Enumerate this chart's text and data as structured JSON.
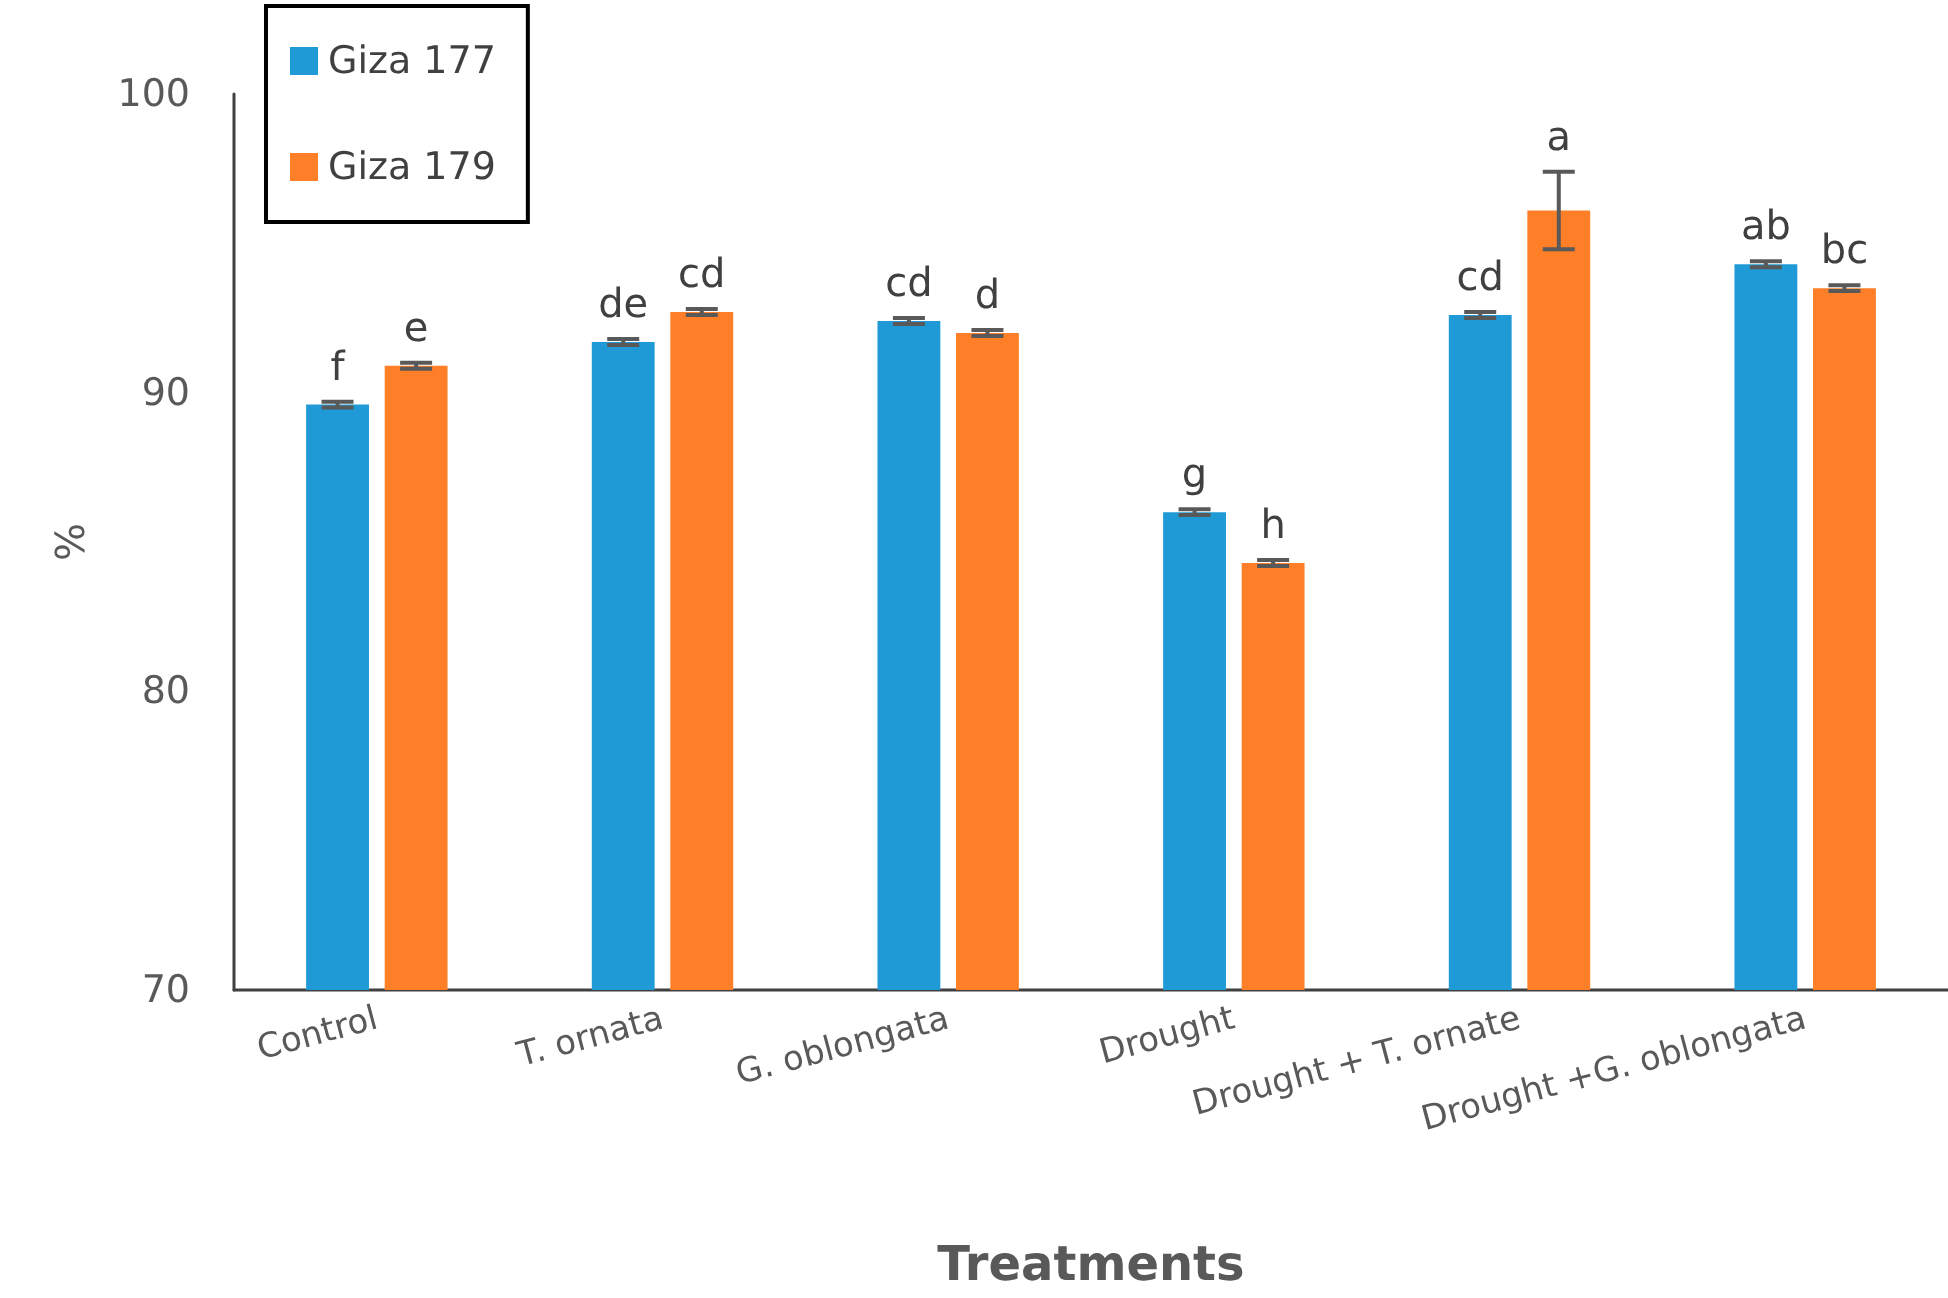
{
  "chart_data": {
    "type": "bar",
    "xlabel": "Treatments",
    "ylabel": "%",
    "categories": [
      "Control",
      "T. ornata",
      "G. oblongata",
      "Drought",
      "Drought + T. ornate",
      "Drought +G. oblongata"
    ],
    "series": [
      {
        "name": "Giza 177",
        "color": "#1f9ad6",
        "values": [
          89.6,
          91.7,
          92.4,
          86.0,
          92.6,
          94.3
        ],
        "errors": [
          0.1,
          0.1,
          0.1,
          0.1,
          0.1,
          0.1
        ]
      },
      {
        "name": "Giza 179",
        "color": "#fe7f27",
        "values": [
          90.9,
          92.7,
          92.0,
          84.3,
          96.1,
          93.5
        ],
        "errors": [
          0.1,
          0.1,
          0.1,
          0.1,
          1.3,
          0.1
        ]
      }
    ],
    "ylim": [
      70,
      100
    ],
    "yticks": [
      70,
      80,
      90,
      100
    ],
    "grid": false,
    "legend": "top left",
    "annotations": [
      {
        "text": "f",
        "x": "Control",
        "y": 89.6
      },
      {
        "text": "e",
        "x": "Control",
        "y": 90.9
      },
      {
        "text": "de",
        "x": "T. ornata",
        "y": 91.7
      },
      {
        "text": "cd",
        "x": "T. ornata",
        "y": 92.7
      },
      {
        "text": "cd",
        "x": "G. oblongata",
        "y": 92.4
      },
      {
        "text": "d",
        "x": "G. oblongata",
        "y": 92.0
      },
      {
        "text": "g",
        "x": "Drought",
        "y": 86.0
      },
      {
        "text": "h",
        "x": "Drought",
        "y": 84.3
      },
      {
        "text": "cd",
        "x": "Drought + T. ornate",
        "y": 92.6
      },
      {
        "text": "a",
        "x": "Drought + T. ornate",
        "y": 96.1
      },
      {
        "text": "ab",
        "x": "Drought +G. oblongata",
        "y": 94.3
      },
      {
        "text": "bc",
        "x": "Drought +G. oblongata",
        "y": 93.5
      }
    ]
  }
}
